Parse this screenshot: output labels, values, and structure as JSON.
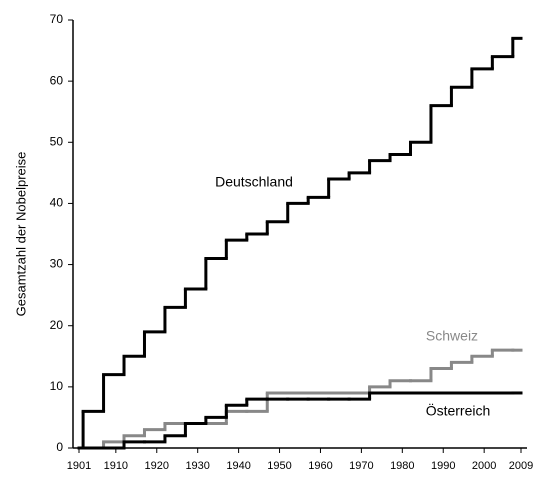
{
  "chart_data": {
    "type": "step",
    "ylabel": "Gesamtzahl der Nobelpreise",
    "x": [
      1901,
      1902,
      1907,
      1912,
      1917,
      1922,
      1927,
      1932,
      1937,
      1942,
      1947,
      1952,
      1957,
      1962,
      1967,
      1972,
      1977,
      1982,
      1987,
      1992,
      1997,
      2002,
      2007
    ],
    "series": [
      {
        "name": "Deutschland",
        "color": "#000000",
        "values": [
          0,
          6,
          12,
          15,
          19,
          23,
          26,
          31,
          34,
          35,
          37,
          40,
          41,
          44,
          45,
          47,
          48,
          50,
          56,
          59,
          62,
          64,
          67
        ]
      },
      {
        "name": "Schweiz",
        "color": "#888888",
        "values": [
          0,
          0,
          1,
          2,
          3,
          4,
          4,
          4,
          6,
          6,
          9,
          9,
          9,
          9,
          9,
          10,
          11,
          11,
          13,
          14,
          15,
          16,
          16
        ]
      },
      {
        "name": "Österreich",
        "color": "#000000",
        "values": [
          0,
          0,
          0,
          1,
          1,
          2,
          4,
          5,
          7,
          8,
          8,
          8,
          8,
          8,
          8,
          9,
          9,
          9,
          9,
          9,
          9,
          9,
          9
        ]
      }
    ],
    "xlim": [
      1901,
      2009
    ],
    "ylim": [
      0,
      70
    ],
    "xticks": [
      1901,
      1910,
      1920,
      1930,
      1940,
      1950,
      1960,
      1970,
      1980,
      1990,
      2000,
      2009
    ],
    "yticks": [
      0,
      10,
      20,
      30,
      40,
      50,
      60,
      70
    ]
  }
}
